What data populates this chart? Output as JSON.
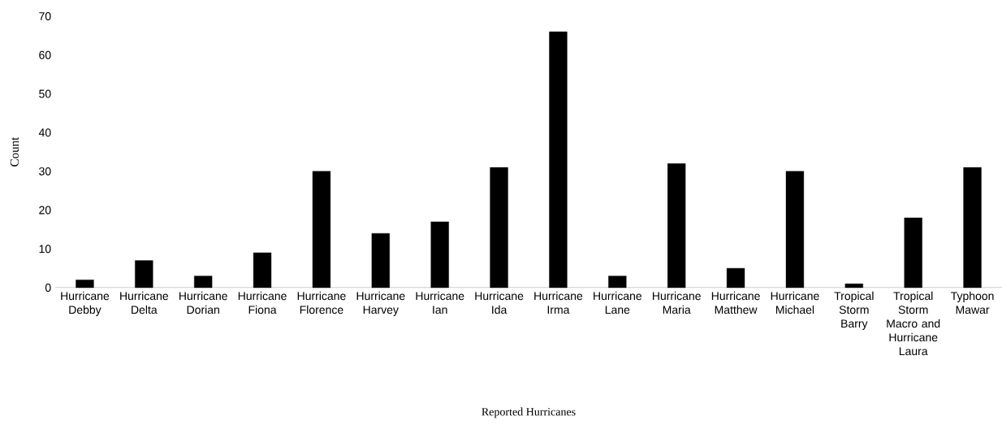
{
  "chart_data": {
    "type": "bar",
    "xlabel": "Reported Hurricanes",
    "ylabel": "Count",
    "categories": [
      "Hurricane Debby",
      "Hurricane Delta",
      "Hurricane Dorian",
      "Hurricane Fiona",
      "Hurricane Florence",
      "Hurricane Harvey",
      "Hurricane Ian",
      "Hurricane Ida",
      "Hurricane Irma",
      "Hurricane Lane",
      "Hurricane Maria",
      "Hurricane Matthew",
      "Hurricane Michael",
      "Tropical Storm Barry",
      "Tropical Storm Macro and Hurricane Laura",
      "Typhoon Mawar"
    ],
    "values": [
      2,
      7,
      3,
      9,
      30,
      14,
      17,
      31,
      66,
      3,
      32,
      5,
      30,
      1,
      18,
      31
    ],
    "color": "#000000",
    "ylim": [
      0,
      70
    ],
    "yticks": [
      0,
      10,
      20,
      30,
      40,
      50,
      60,
      70
    ]
  }
}
